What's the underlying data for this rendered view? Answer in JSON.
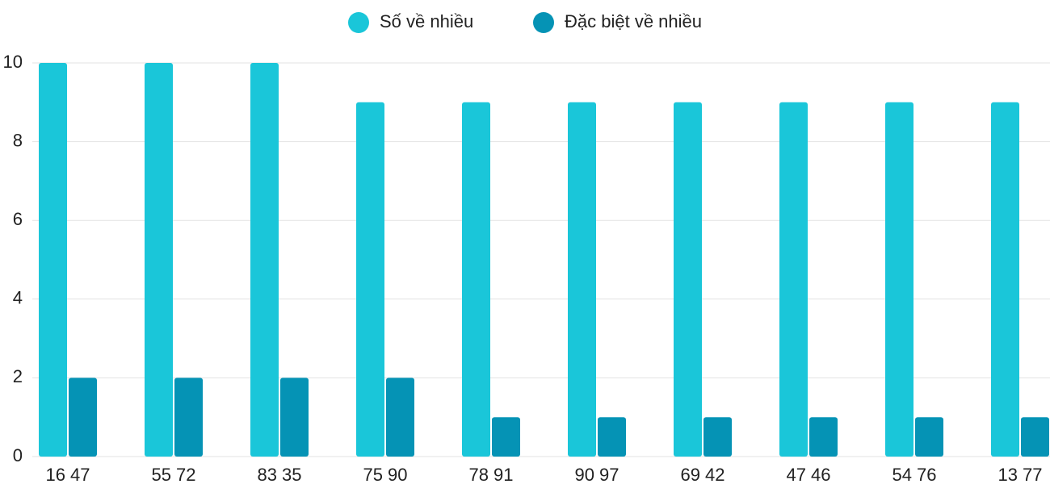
{
  "chart_data": {
    "type": "bar",
    "categories": [
      "16 47",
      "55 72",
      "83 35",
      "75 90",
      "78 91",
      "90 97",
      "69 42",
      "47 46",
      "54 76",
      "13 77"
    ],
    "series": [
      {
        "name": "Số về nhiều",
        "color": "#1ac6d9",
        "values": [
          10,
          10,
          10,
          9,
          9,
          9,
          9,
          9,
          9,
          9
        ]
      },
      {
        "name": "Đặc biệt về nhiều",
        "color": "#0593b5",
        "values": [
          2,
          2,
          2,
          2,
          1,
          1,
          1,
          1,
          1,
          1
        ]
      }
    ],
    "ylim": [
      0,
      10
    ],
    "yticks": [
      0,
      2,
      4,
      6,
      8,
      10
    ],
    "grid": true,
    "legend": "top"
  }
}
